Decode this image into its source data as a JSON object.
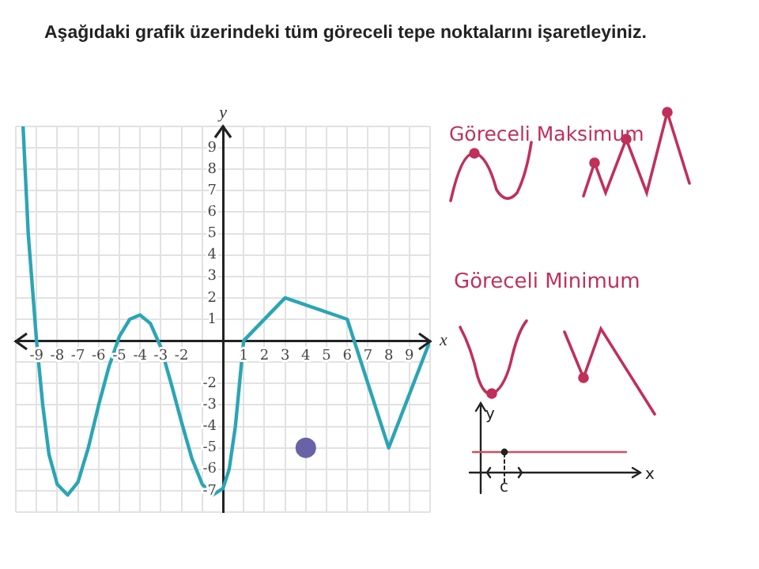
{
  "chart_data": {
    "type": "line",
    "title": "Aşağıdaki grafik üzerindeki tüm göreceli tepe noktalarını işaretleyiniz.",
    "xlabel": "x",
    "ylabel": "y",
    "xlim": [
      -10,
      10
    ],
    "ylim": [
      -8,
      10
    ],
    "xticks": [
      {
        "value": -10,
        "label": null
      },
      -9,
      -8,
      -7,
      -6,
      -5,
      -4,
      -3,
      -2,
      {
        "value": -1,
        "label": null
      },
      {
        "value": 0,
        "label": null
      },
      1,
      2,
      3,
      4,
      5,
      6,
      7,
      8,
      9,
      {
        "value": 10,
        "label": null
      }
    ],
    "yticks": [
      {
        "value": -8,
        "label": null
      },
      -7,
      -6,
      -5,
      -4,
      -3,
      -2,
      {
        "value": -1,
        "label": null
      },
      {
        "value": 0,
        "label": null
      },
      1,
      2,
      3,
      4,
      5,
      6,
      7,
      8,
      9,
      {
        "value": 10,
        "label": null
      }
    ],
    "grid": true,
    "marker": "none",
    "series": [
      {
        "color": "#2ba5b5",
        "x": [
          -9.65,
          -9.4,
          -9.2,
          -9,
          -8.7,
          -8.4,
          -8,
          -7.5,
          -7,
          -6.5,
          -6,
          -5.5,
          -5,
          -4.5,
          -4,
          -3.5,
          -3,
          -2.5,
          -2,
          -1.5,
          -1,
          -0.5,
          0,
          0.3,
          0.6,
          0.8,
          1,
          3,
          6,
          8,
          10
        ],
        "values": [
          10,
          5,
          2.5,
          0,
          -3,
          -5.3,
          -6.7,
          -7.2,
          -6.6,
          -5,
          -3,
          -1.2,
          0.2,
          1,
          1.2,
          0.8,
          -0.3,
          -2,
          -3.8,
          -5.5,
          -6.7,
          -7.2,
          -6.9,
          -6,
          -4,
          -2,
          0,
          2,
          1,
          -5,
          0
        ]
      },
      {
        "type": "scatter",
        "marker": "circle",
        "color": "#6a62a6",
        "x": [
          4
        ],
        "values": [
          -5
        ]
      }
    ],
    "annotations": [
      "Göreceli Maksimum",
      "Göreceli Minimum",
      "y",
      "x",
      "c"
    ]
  }
}
